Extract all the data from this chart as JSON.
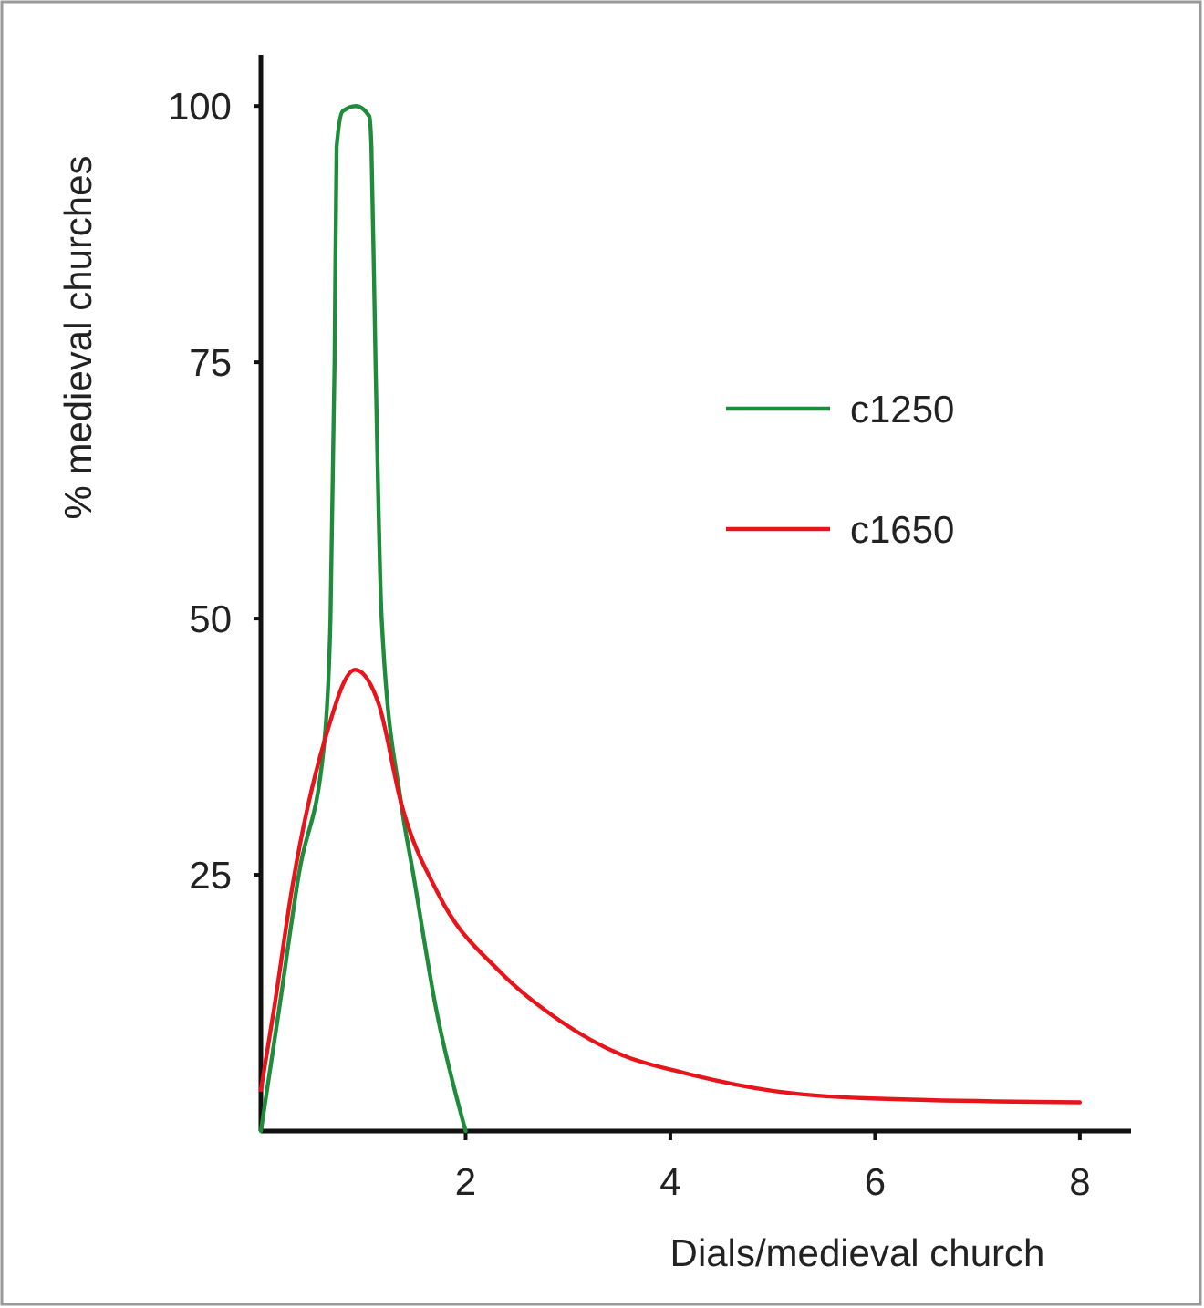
{
  "chart_data": {
    "type": "line",
    "xlabel": "Dials/medieval church",
    "ylabel": "% medieval churches",
    "xlim": [
      0,
      8.5
    ],
    "ylim": [
      0,
      105
    ],
    "xticks": [
      2,
      4,
      6,
      8
    ],
    "yticks": [
      25,
      50,
      75,
      100
    ],
    "grid": false,
    "legend": "top right",
    "marker": "none",
    "line_style": "solid",
    "series": [
      {
        "name": "c1250",
        "color": "#1e8c3a",
        "x": [
          0,
          0.18,
          0.37,
          0.62,
          0.68,
          0.72,
          0.74,
          0.8,
          0.93,
          1.06,
          1.08,
          1.12,
          1.18,
          1.37,
          1.49,
          1.71,
          2
        ],
        "values": [
          0,
          12,
          25,
          38,
          50,
          75,
          96,
          99.5,
          100,
          99,
          96,
          75,
          50,
          32,
          25,
          12,
          0
        ]
      },
      {
        "name": "c1650",
        "color": "#e8141b",
        "x": [
          0,
          0.13,
          0.31,
          0.62,
          0.92,
          1.15,
          1.37,
          1.74,
          2.34,
          2.93,
          3.53,
          4.12,
          5.01,
          5.9,
          8
        ],
        "values": [
          4,
          12,
          24,
          38,
          45,
          41.7,
          32,
          23,
          15.5,
          10.7,
          7.4,
          5.7,
          3.9,
          3.2,
          2.8
        ]
      }
    ]
  }
}
